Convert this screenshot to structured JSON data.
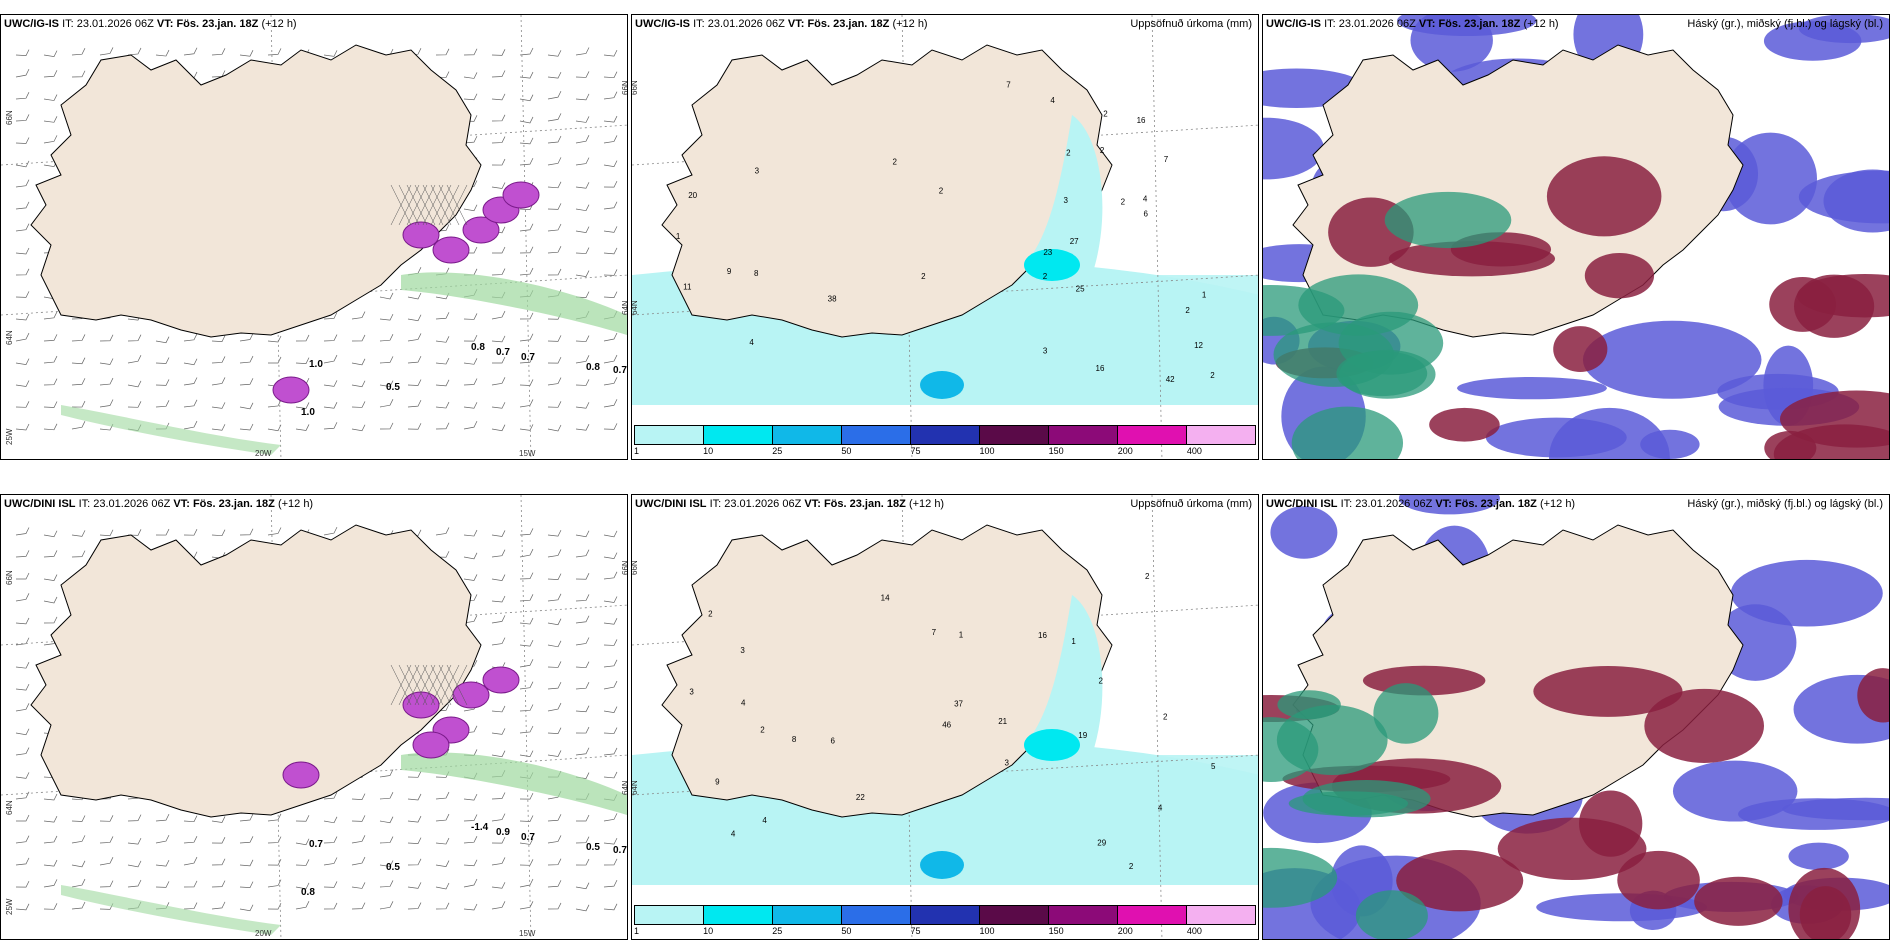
{
  "rows": [
    {
      "model": "UWC/IG-IS",
      "it_label": "IT:",
      "it_value": "23.01.2026 06Z",
      "vt_label": "VT:",
      "vt_value": "Fös. 23.jan. 18Z",
      "lead": "(+12 h)"
    },
    {
      "model": "UWC/DINI ISL",
      "it_label": "IT:",
      "it_value": "23.01.2026 06Z",
      "vt_label": "VT:",
      "vt_value": "Fös. 23.jan. 18Z",
      "lead": "(+12 h)"
    }
  ],
  "precip_legend": "Uppsöfnuð úrkoma (mm)",
  "cloud_legend": "Háský (gr.), miðský (fj.bl.) og lágský (bl.)",
  "colorbar": {
    "ticks": [
      "1",
      "10",
      "25",
      "50",
      "75",
      "100",
      "150",
      "200",
      "400"
    ],
    "colors": [
      "#b8f4f4",
      "#00e8f0",
      "#10b8e8",
      "#2b6ee8",
      "#2232b0",
      "#5a0a48",
      "#8c0a78",
      "#e010b0",
      "#f4b0f0"
    ]
  },
  "axes": {
    "lat_top": "66N",
    "lat_bottom": "64N",
    "lat_lower": "25W",
    "lon_left": "20W",
    "lon_right": "15W",
    "lat_right_top": "66N",
    "lat_right_mid": "64N"
  },
  "wind_labels_top": [
    "0.8",
    "0.7",
    "0.7",
    "0.8",
    "0.7",
    "0.5",
    "1.0",
    "1.0"
  ],
  "wind_labels_bottom": [
    "-1.4",
    "0.9",
    "0.7",
    "0.5",
    "0.7",
    "0.5",
    "0.8",
    "0.7"
  ],
  "precip_labels_top": [
    "2",
    "1",
    "2",
    "2",
    "3",
    "2",
    "4",
    "2",
    "12",
    "16",
    "27",
    "23",
    "11",
    "25",
    "38",
    "42",
    "16",
    "9",
    "2",
    "2",
    "2",
    "1",
    "3",
    "4",
    "6",
    "4",
    "3",
    "2",
    "2",
    "8",
    "7",
    "7",
    "20"
  ],
  "precip_labels_bottom": [
    "2",
    "2",
    "3",
    "2",
    "4",
    "3",
    "4",
    "6",
    "1",
    "7",
    "16",
    "29",
    "22",
    "14",
    "21",
    "9",
    "19",
    "37",
    "3",
    "4",
    "2",
    "1",
    "2",
    "5",
    "2",
    "4",
    "8",
    "46"
  ],
  "colors": {
    "land": "#f2e6d9",
    "ocean": "#ffffff",
    "precip_light": "#b8f4f4",
    "high_cloud": "#5a5ad8",
    "mid_cloud": "#8a2040",
    "low_cloud": "#2a9a7a",
    "snow": "#c050d0",
    "accent_green": "#9ed89e"
  }
}
